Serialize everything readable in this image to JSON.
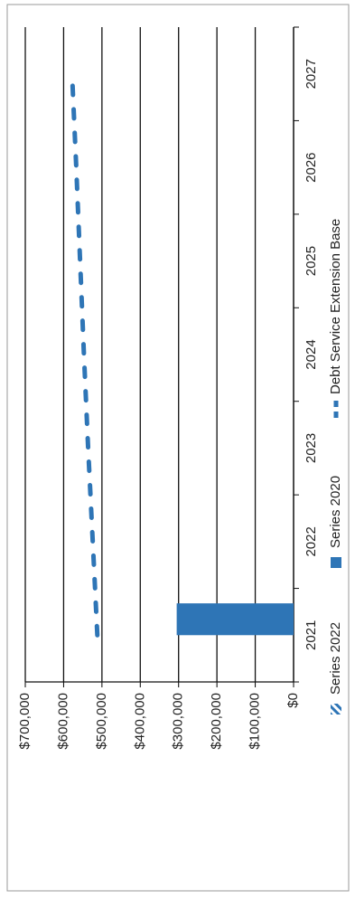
{
  "chart_data": {
    "type": "bar",
    "categories": [
      "2021",
      "2022",
      "2023",
      "2024",
      "2025",
      "2026",
      "2027"
    ],
    "series": [
      {
        "name": "Series 2022",
        "color": "#2e75b6",
        "pattern": "hatch",
        "values": [
          null,
          null,
          null,
          null,
          null,
          null,
          null
        ]
      },
      {
        "name": "Series 2020",
        "color": "#2e75b6",
        "values": [
          305000,
          null,
          null,
          null,
          null,
          null,
          null
        ]
      },
      {
        "name": "Debt Service Extension Base",
        "color": "#2e75b6",
        "type": "line",
        "dashed": true,
        "values": [
          512000,
          524000,
          536000,
          547000,
          557000,
          567000,
          578000
        ]
      }
    ],
    "ylim": [
      0,
      700000
    ],
    "yticks": [
      {
        "value": 0,
        "label": "$0"
      },
      {
        "value": 100000,
        "label": "$100,000"
      },
      {
        "value": 200000,
        "label": "$200,000"
      },
      {
        "value": 300000,
        "label": "$300,000"
      },
      {
        "value": 400000,
        "label": "$400,000"
      },
      {
        "value": 500000,
        "label": "$500,000"
      },
      {
        "value": 600000,
        "label": "$600,000"
      },
      {
        "value": 700000,
        "label": "$700,000"
      }
    ],
    "grid": true,
    "legend": "bottom",
    "rotated": true
  }
}
